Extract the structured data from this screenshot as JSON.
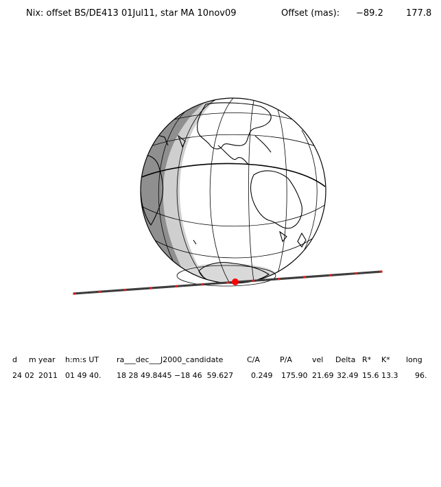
{
  "title": {
    "main": "Nix: offset BS/DE413 01Jul11, star MA 10nov09",
    "offset_label": "Offset (mas):",
    "offset_x": "−89.2",
    "offset_y": "177.8"
  },
  "path": {
    "track_color": "#444444",
    "marker_color": "#e02020",
    "closest_point_color": "#ff0000",
    "minute_markers": 13
  },
  "globe": {
    "ocean_color": "#ffffff",
    "night_color": "#8f8f8f",
    "twilight_color": "#cfcfcf",
    "line_color": "#000000"
  },
  "table": {
    "headers": [
      "d",
      "m",
      "year",
      "h:m:s UT",
      "ra___dec___J2000_candidate",
      "C/A",
      "P/A",
      "vel",
      "Delta",
      "R*",
      "K*",
      "long"
    ],
    "values": [
      "24",
      "02",
      "2011",
      "01 49 40.",
      "18 28 49.8445 −18 46  59.627",
      "0.249",
      "175.90",
      "21.69",
      "32.49",
      "15.6",
      "13.3",
      "96."
    ]
  }
}
